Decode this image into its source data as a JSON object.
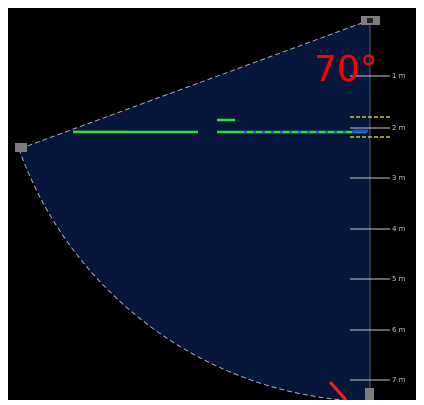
{
  "sonar": {
    "beam_angle_label": "70°",
    "range_labels": [
      "1 m",
      "2 m",
      "3 m",
      "4 m",
      "5 m",
      "6 m",
      "7 m"
    ],
    "colors": {
      "background": "#000000",
      "fan_fill": "#07163b",
      "edge_dash": "#a7acb4",
      "tick": "#c3c7cc",
      "angle_label": "#ff0000",
      "echo_green": "#23e23b",
      "echo_blue": "#2f48d8",
      "marker_yellow": "#c8c23a",
      "heading_line": "#ff1e1e",
      "handle": "#7d7d7d"
    }
  }
}
